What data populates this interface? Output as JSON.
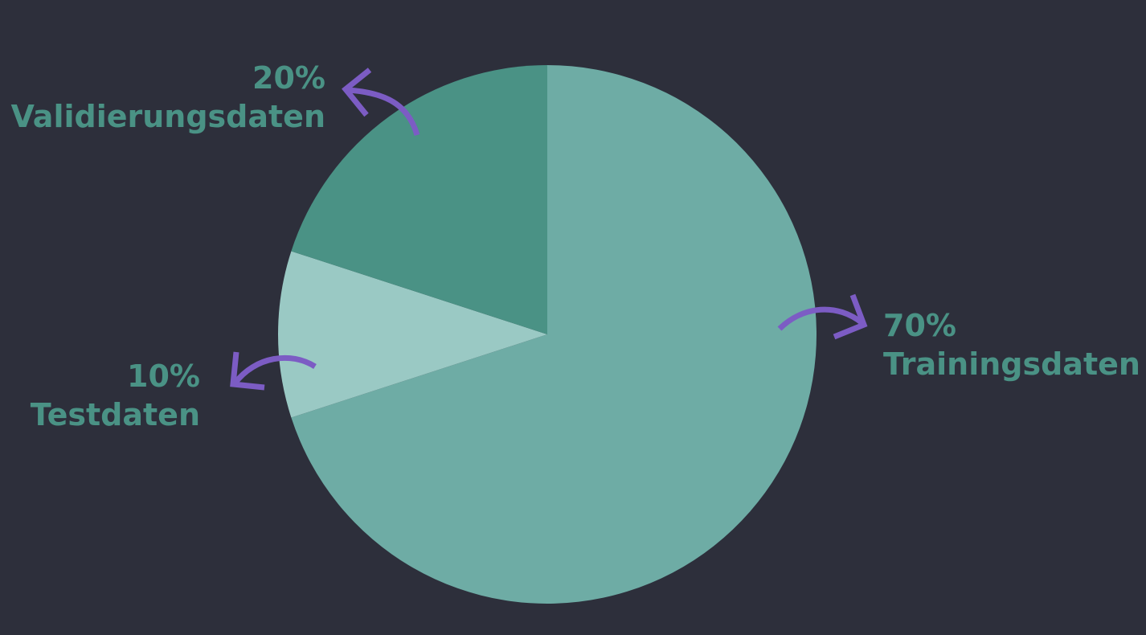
{
  "colors": {
    "background": "#2d2f3b",
    "label": "#4a9285",
    "arrow": "#7c5cc4"
  },
  "chart_data": {
    "type": "pie",
    "slices": [
      {
        "label": "Trainingsdaten",
        "value": 70,
        "percent_text": "70%",
        "color": "#6eaca5"
      },
      {
        "label": "Testdaten",
        "value": 10,
        "percent_text": "10%",
        "color": "#9ac9c4"
      },
      {
        "label": "Validierungsdaten",
        "value": 20,
        "percent_text": "20%",
        "color": "#4a9285"
      }
    ],
    "start": "12 o'clock",
    "direction": "clockwise",
    "labels": [
      {
        "percent": "20%",
        "name": "Validierungsdaten"
      },
      {
        "percent": "10%",
        "name": "Testdaten"
      },
      {
        "percent": "70%",
        "name": "Trainingsdaten"
      }
    ]
  }
}
